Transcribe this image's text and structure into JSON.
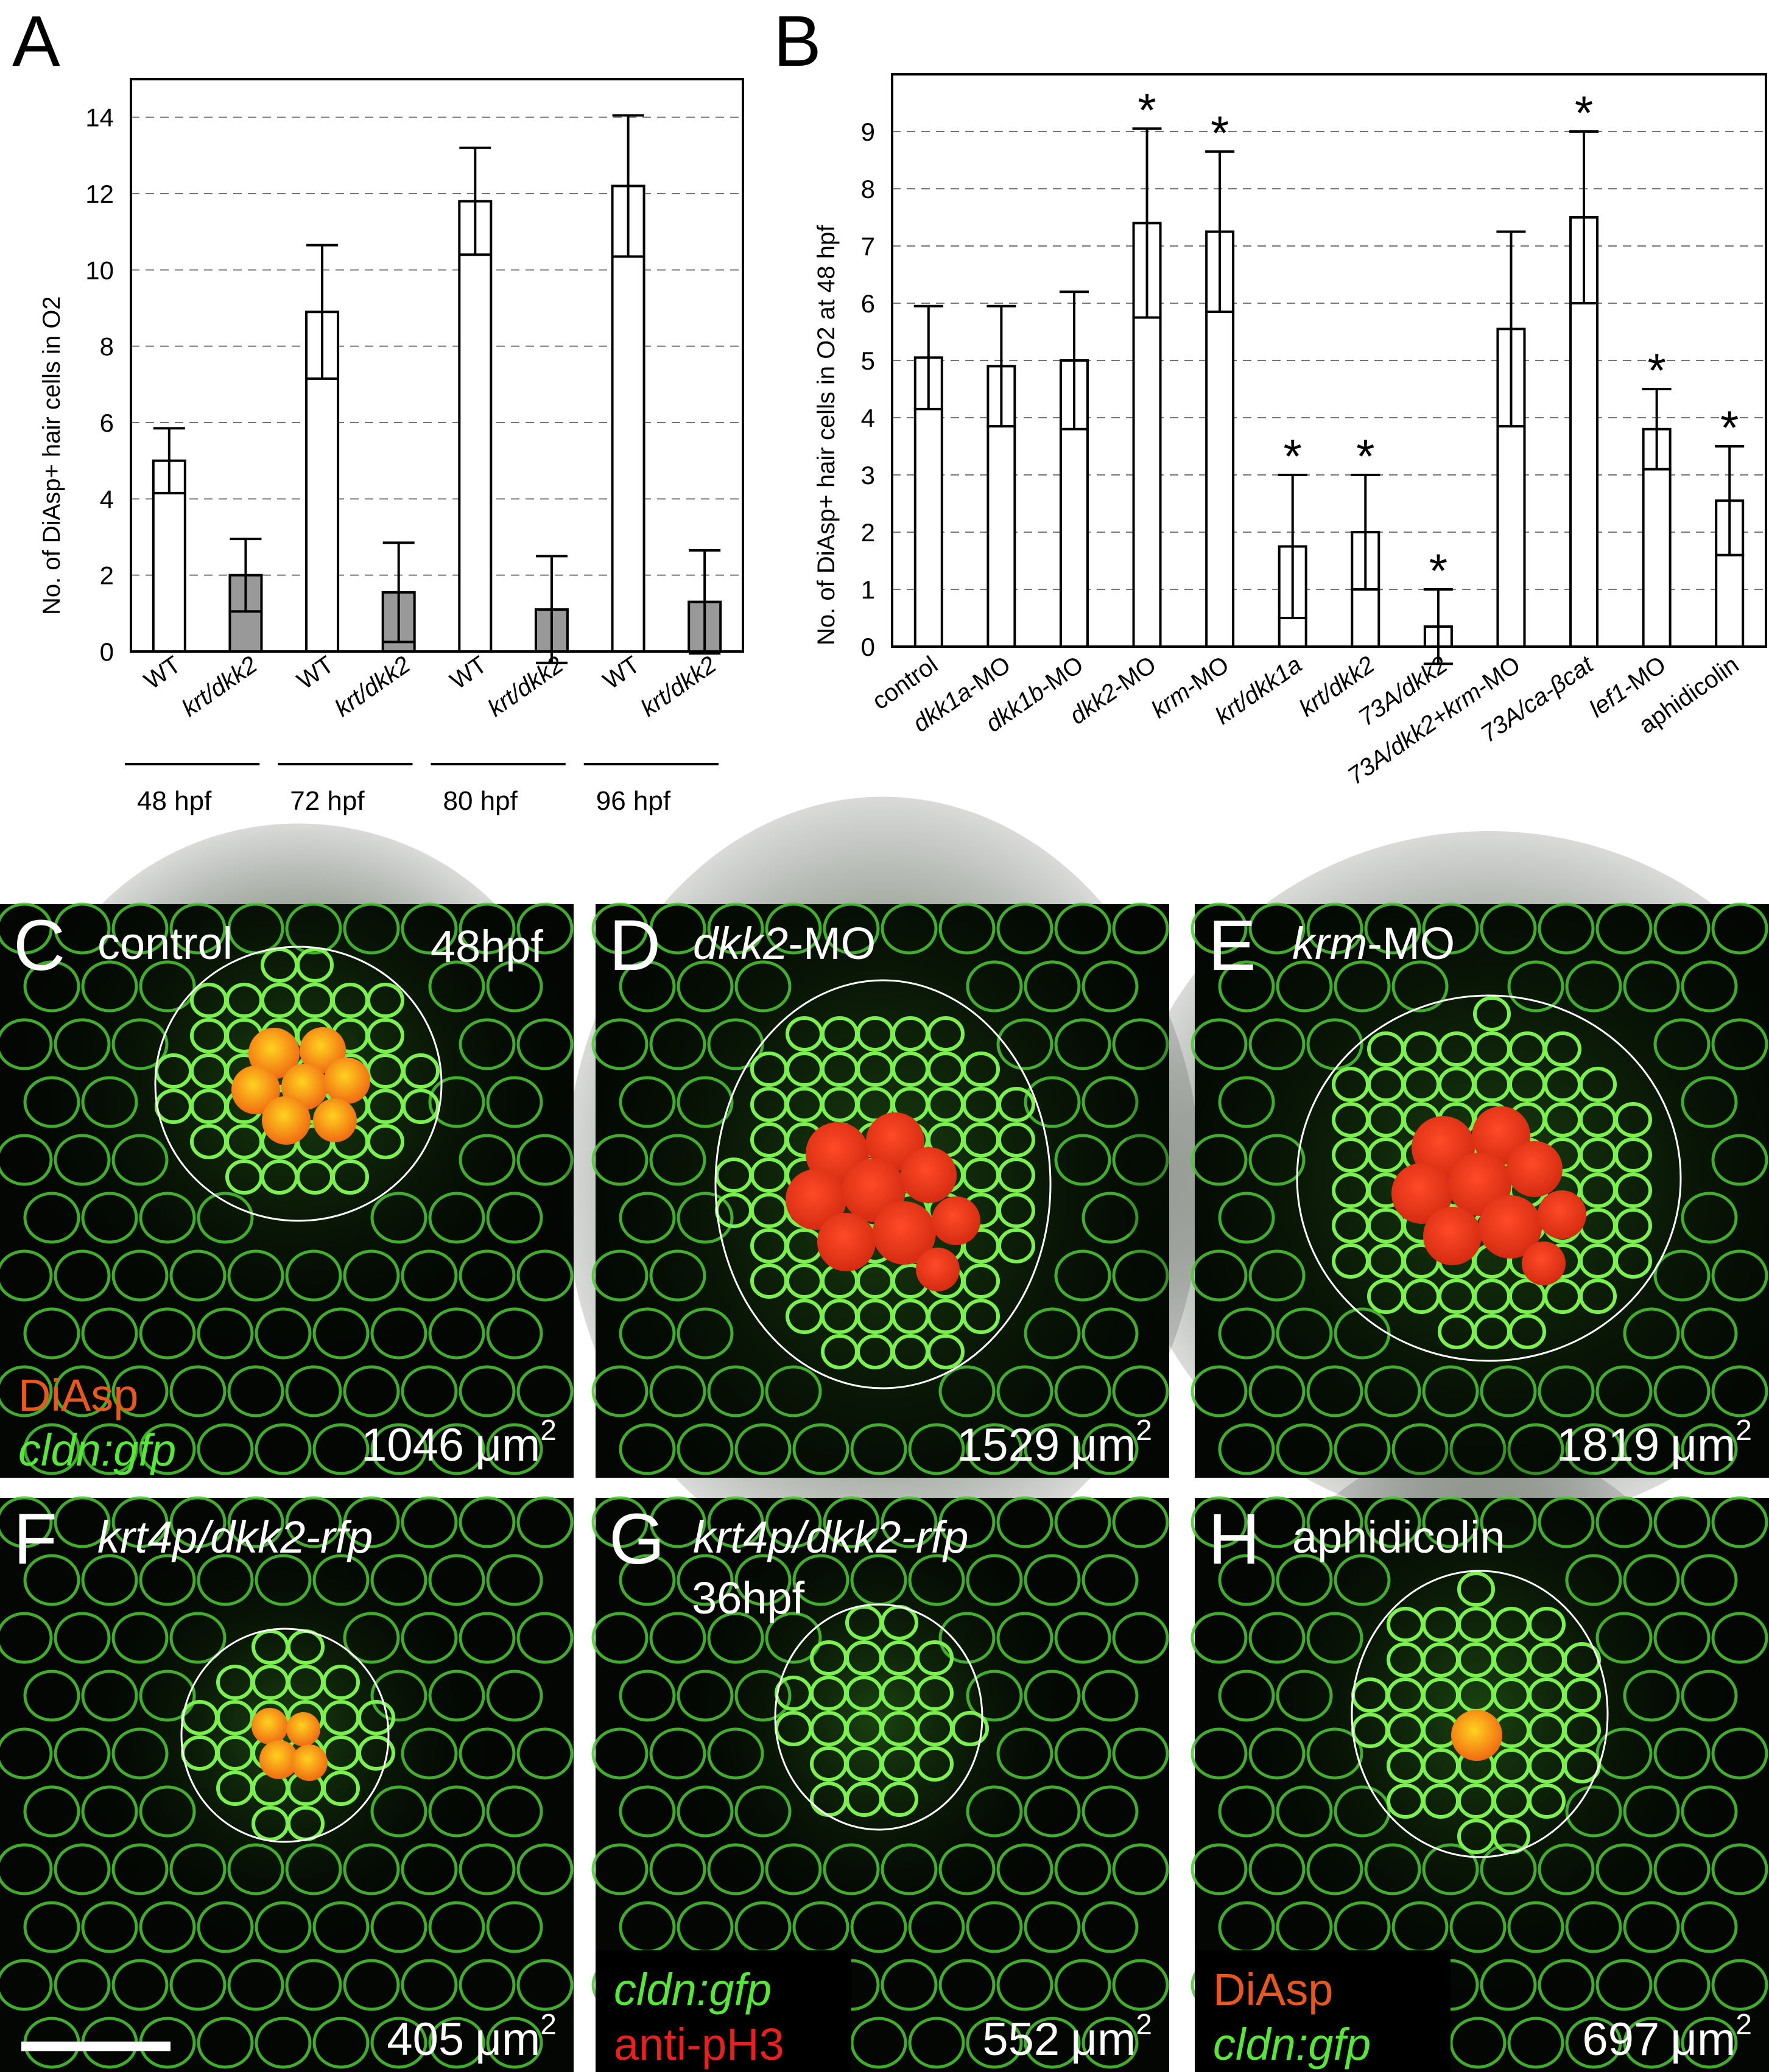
{
  "panels": {
    "A": {
      "letter": "A",
      "ylabel": "No. of DiAsp+ hair cells in O2"
    },
    "B": {
      "letter": "B",
      "ylabel": "No. of DiAsp+ hair cells in O2 at 48 hpf"
    }
  },
  "chart_data": [
    {
      "panel": "A",
      "type": "bar",
      "ylim": [
        0,
        15
      ],
      "yticks": [
        0,
        2,
        4,
        6,
        8,
        10,
        12,
        14
      ],
      "grid": "horizontal-dashed",
      "categories": [
        "WT",
        "krt/dkk2",
        "WT",
        "krt/dkk2",
        "WT",
        "krt/dkk2",
        "WT",
        "krt/dkk2"
      ],
      "groups": [
        "48 hpf",
        "72 hpf",
        "80 hpf",
        "96 hpf"
      ],
      "values": [
        5.0,
        2.0,
        8.9,
        1.55,
        11.8,
        1.1,
        12.2,
        1.3
      ],
      "errors": [
        0.85,
        0.95,
        1.75,
        1.3,
        1.4,
        1.4,
        1.85,
        1.35
      ],
      "colors": [
        "#ffffff",
        "#999999",
        "#ffffff",
        "#999999",
        "#ffffff",
        "#999999",
        "#ffffff",
        "#999999"
      ]
    },
    {
      "panel": "B",
      "type": "bar",
      "ylim": [
        0,
        10
      ],
      "yticks": [
        0,
        1,
        2,
        3,
        4,
        5,
        6,
        7,
        8,
        9
      ],
      "grid": "horizontal-dashed",
      "categories": [
        {
          "italic": "",
          "rest": "control"
        },
        {
          "italic": "dkk1a",
          "rest": "-MO"
        },
        {
          "italic": "dkk1b",
          "rest": "-MO"
        },
        {
          "italic": "dkk2",
          "rest": "-MO"
        },
        {
          "italic": "krm",
          "rest": "-MO"
        },
        {
          "italic": "krt/dkk1a",
          "rest": ""
        },
        {
          "italic": "krt/dkk2",
          "rest": ""
        },
        {
          "italic": "73A/dkk2",
          "rest": ""
        },
        {
          "italic": "73A/dkk2+krm",
          "rest": "-MO"
        },
        {
          "italic": "73A/ca-βcat",
          "rest": ""
        },
        {
          "italic": "lef1",
          "rest": "-MO"
        },
        {
          "italic": "",
          "rest": "aphidicolin"
        }
      ],
      "values": [
        5.05,
        4.9,
        5.0,
        7.4,
        7.25,
        1.75,
        2.0,
        0.35,
        5.55,
        7.5,
        3.8,
        2.55
      ],
      "errors": [
        0.9,
        1.05,
        1.2,
        1.65,
        1.4,
        1.25,
        1.0,
        0.65,
        1.7,
        1.5,
        0.7,
        0.95
      ],
      "significant": [
        false,
        false,
        false,
        true,
        true,
        true,
        true,
        true,
        false,
        true,
        true,
        true
      ],
      "significance_mark": "*"
    }
  ],
  "micrographs": [
    {
      "letter": "C",
      "title_italic": "",
      "title_rest": "control",
      "stage": "48hpf",
      "area_num": "1046",
      "area_unit": "μm",
      "area_sup": "2",
      "legend": [
        {
          "text": "DiAsp",
          "italic": false,
          "color": "#e8581e"
        },
        {
          "text": "cldn:gfp",
          "italic": true,
          "color": "#58e63a"
        }
      ]
    },
    {
      "letter": "D",
      "title_italic": "dkk2",
      "title_rest": "-MO",
      "stage": "",
      "area_num": "1529",
      "area_unit": "μm",
      "area_sup": "2",
      "legend": []
    },
    {
      "letter": "E",
      "title_italic": "krm",
      "title_rest": "-MO",
      "stage": "",
      "area_num": "1819",
      "area_unit": "μm",
      "area_sup": "2",
      "legend": []
    },
    {
      "letter": "F",
      "title_italic": "krt4p/dkk2-rfp",
      "title_rest": "",
      "stage": "",
      "area_num": "405",
      "area_unit": "μm",
      "area_sup": "2",
      "legend": []
    },
    {
      "letter": "G",
      "title_italic": "krt4p/dkk2-rfp",
      "title_rest": "",
      "stage": "36hpf",
      "area_num": "552",
      "area_unit": "μm",
      "area_sup": "2",
      "legend": [
        {
          "text": "cldn:gfp",
          "italic": true,
          "color": "#58e63a"
        },
        {
          "text": "anti-pH3",
          "italic": false,
          "color": "#e82020"
        }
      ]
    },
    {
      "letter": "H",
      "title_italic": "",
      "title_rest": "aphidicolin",
      "stage": "",
      "area_num": "697",
      "area_unit": "μm",
      "area_sup": "2",
      "legend": [
        {
          "text": "DiAsp",
          "italic": false,
          "color": "#e8581e"
        },
        {
          "text": "cldn:gfp",
          "italic": true,
          "color": "#58e63a"
        }
      ]
    }
  ]
}
